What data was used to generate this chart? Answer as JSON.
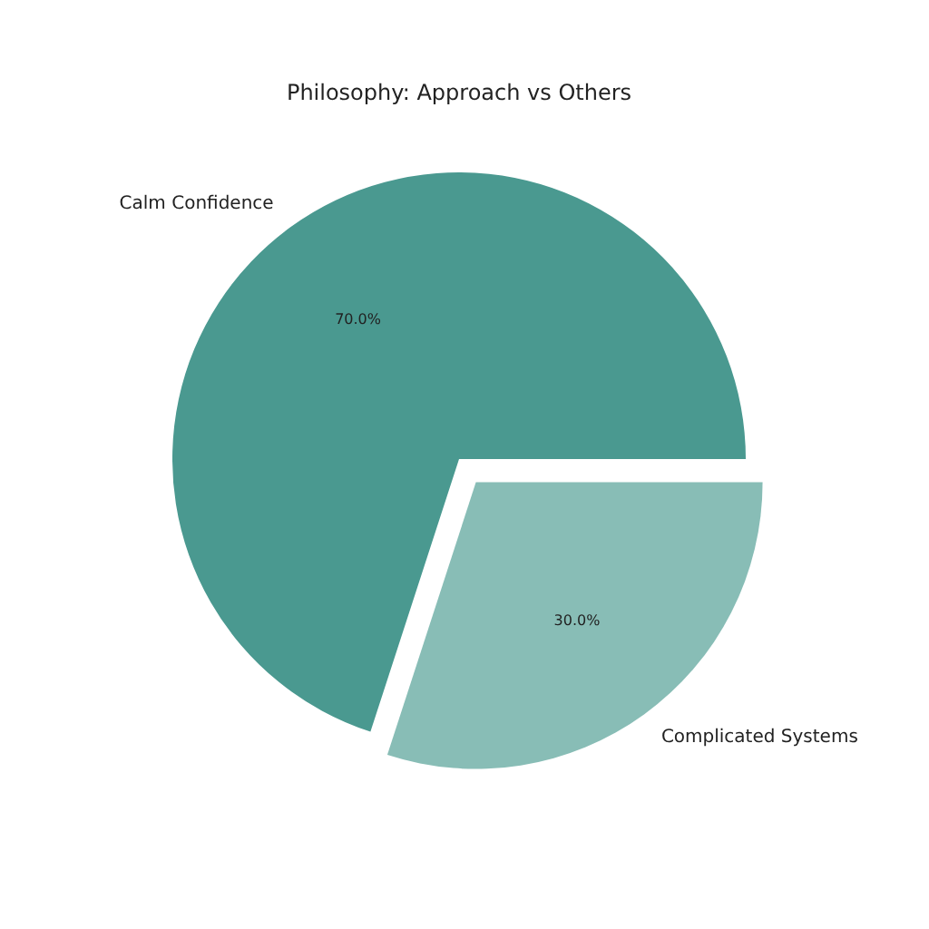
{
  "chart_data": {
    "type": "pie",
    "title": "Philosophy: Approach vs Others",
    "categories": [
      "Calm Confidence",
      "Complicated Systems"
    ],
    "values": [
      70,
      30
    ],
    "colors": [
      "#4a9990",
      "#88bdb6"
    ],
    "value_labels": [
      "70.0%",
      "30.0%"
    ]
  }
}
